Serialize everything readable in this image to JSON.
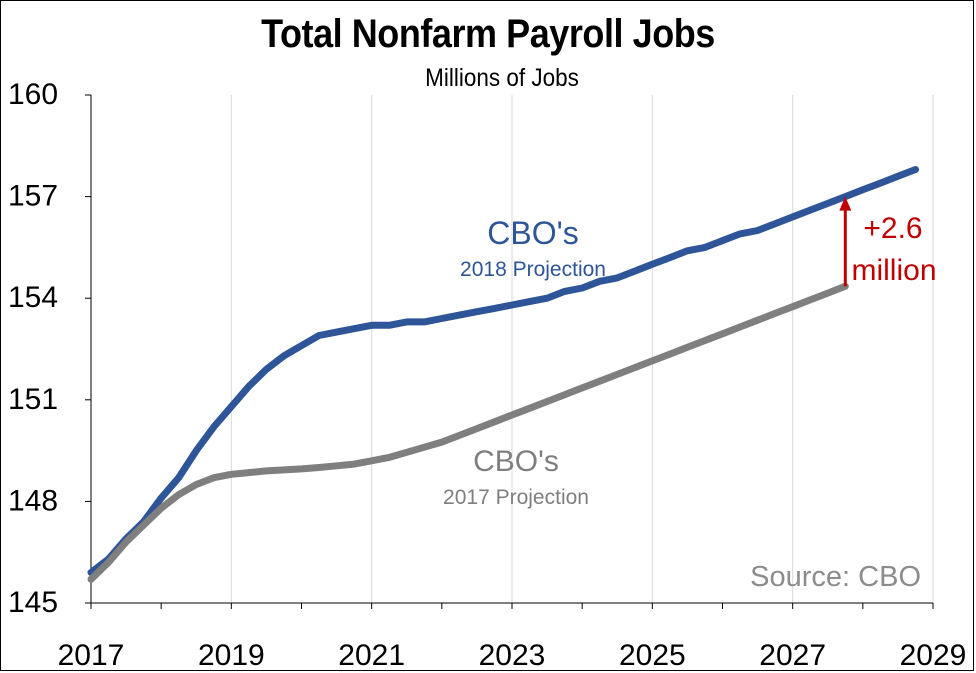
{
  "chart_data": {
    "type": "line",
    "title": "Total Nonfarm Payroll Jobs",
    "subtitle": "Millions of Jobs",
    "xlabel": "",
    "ylabel": "",
    "xlim": [
      2017,
      2029
    ],
    "ylim": [
      145,
      160
    ],
    "x_ticks": [
      "2017",
      "2019",
      "2021",
      "2023",
      "2025",
      "2027",
      "2029"
    ],
    "y_ticks": [
      "145",
      "148",
      "151",
      "154",
      "157",
      "160"
    ],
    "grid": "vertical",
    "series": [
      {
        "name": "CBO's 2018 Projection",
        "color": "#2e5597",
        "x": [
          2017.0,
          2017.25,
          2017.5,
          2017.75,
          2018.0,
          2018.25,
          2018.5,
          2018.75,
          2019.0,
          2019.25,
          2019.5,
          2019.75,
          2020.0,
          2020.25,
          2020.5,
          2020.75,
          2021.0,
          2021.25,
          2021.5,
          2021.75,
          2022.0,
          2022.25,
          2022.5,
          2022.75,
          2023.0,
          2023.25,
          2023.5,
          2023.75,
          2024.0,
          2024.25,
          2024.5,
          2024.75,
          2025.0,
          2025.25,
          2025.5,
          2025.75,
          2026.0,
          2026.25,
          2026.5,
          2026.75,
          2027.0,
          2027.25,
          2027.5,
          2027.75,
          2028.0,
          2028.25,
          2028.5,
          2028.75
        ],
        "y": [
          145.9,
          146.3,
          146.9,
          147.4,
          148.1,
          148.7,
          149.5,
          150.2,
          150.8,
          151.4,
          151.9,
          152.3,
          152.6,
          152.9,
          153.0,
          153.1,
          153.2,
          153.2,
          153.3,
          153.3,
          153.4,
          153.5,
          153.6,
          153.7,
          153.8,
          153.9,
          154.0,
          154.2,
          154.3,
          154.5,
          154.6,
          154.8,
          155.0,
          155.2,
          155.4,
          155.5,
          155.7,
          155.9,
          156.0,
          156.2,
          156.4,
          156.6,
          156.8,
          157.0,
          157.2,
          157.4,
          157.6,
          157.8
        ]
      },
      {
        "name": "CBO's 2017 Projection",
        "color": "#7f7f7f",
        "x": [
          2017.0,
          2017.25,
          2017.5,
          2017.75,
          2018.0,
          2018.25,
          2018.5,
          2018.75,
          2019.0,
          2019.25,
          2019.5,
          2019.75,
          2020.0,
          2020.25,
          2020.5,
          2020.75,
          2021.0,
          2021.25,
          2021.5,
          2021.75,
          2022.0,
          2022.25,
          2022.5,
          2022.75,
          2023.0,
          2023.25,
          2023.5,
          2023.75,
          2024.0,
          2024.25,
          2024.5,
          2024.75,
          2025.0,
          2025.25,
          2025.5,
          2025.75,
          2026.0,
          2026.25,
          2026.5,
          2026.75,
          2027.0,
          2027.25,
          2027.5,
          2027.75
        ],
        "y": [
          145.7,
          146.2,
          146.8,
          147.3,
          147.8,
          148.2,
          148.5,
          148.7,
          148.8,
          148.85,
          148.9,
          148.93,
          148.96,
          149.0,
          149.05,
          149.1,
          149.2,
          149.3,
          149.45,
          149.6,
          149.75,
          149.95,
          150.15,
          150.35,
          150.55,
          150.75,
          150.95,
          151.15,
          151.35,
          151.55,
          151.75,
          151.95,
          152.15,
          152.35,
          152.55,
          152.75,
          152.95,
          153.15,
          153.35,
          153.55,
          153.75,
          153.95,
          154.15,
          154.35
        ]
      }
    ],
    "labels": {
      "series_2018_main": "CBO's",
      "series_2018_sub": "2018 Projection",
      "series_2017_main": "CBO's",
      "series_2017_sub": "2017 Projection"
    },
    "annotation": {
      "line1": "+2.6",
      "line2": "million",
      "x": 2027.75,
      "y_from": 154.35,
      "y_to": 157.0,
      "color": "#c00000"
    },
    "source": "Source: CBO"
  }
}
